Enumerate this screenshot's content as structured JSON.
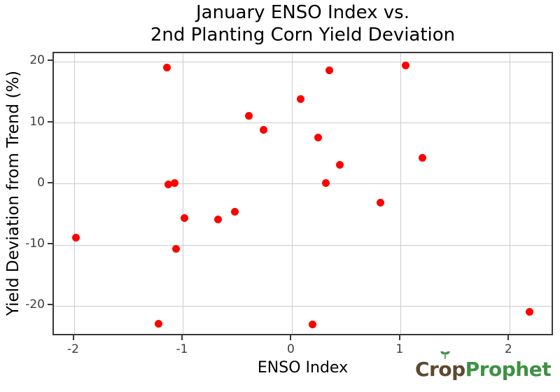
{
  "figure": {
    "title_line1": "January ENSO Index vs.",
    "title_line2": "2nd Planting Corn Yield Deviation"
  },
  "chart_data": {
    "type": "scatter",
    "title": "January ENSO Index vs. 2nd Planting Corn Yield Deviation",
    "xlabel": "ENSO Index",
    "ylabel": "Yield Deviation from Trend (%)",
    "xlim": [
      -2.19,
      2.41
    ],
    "ylim": [
      -25.0,
      21.4
    ],
    "xticks": [
      -2,
      -1,
      0,
      1,
      2
    ],
    "yticks": [
      20,
      10,
      0,
      -10,
      -20
    ],
    "grid": true,
    "legend": false,
    "marker": {
      "color": "#ff0000",
      "radius": 5.5
    },
    "points": [
      [
        -1.99,
        -8.8
      ],
      [
        -1.23,
        -22.9
      ],
      [
        -1.15,
        19.0
      ],
      [
        -1.14,
        -0.1
      ],
      [
        -1.08,
        0.1
      ],
      [
        -1.07,
        -10.6
      ],
      [
        -0.99,
        -5.6
      ],
      [
        -0.68,
        -5.8
      ],
      [
        -0.53,
        -4.5
      ],
      [
        -0.4,
        11.2
      ],
      [
        -0.26,
        8.9
      ],
      [
        0.08,
        13.9
      ],
      [
        0.19,
        -23.0
      ],
      [
        0.24,
        7.6
      ],
      [
        0.31,
        0.2
      ],
      [
        0.34,
        18.6
      ],
      [
        0.44,
        3.1
      ],
      [
        0.81,
        -3.1
      ],
      [
        1.04,
        19.4
      ],
      [
        1.2,
        4.3
      ],
      [
        2.18,
        -20.9
      ]
    ]
  },
  "branding": {
    "crop_pre": "Cr",
    "crop_o": "o",
    "crop_post": "p",
    "prophet": "Prophet",
    "crop_color": "#5b4a2f",
    "prophet_color": "#3f9143"
  },
  "colors": {
    "background": "#ffffff",
    "grid": "#cccccc",
    "spine": "#383838",
    "tick_label": "#3d3d3d",
    "point": "#ff0000"
  }
}
